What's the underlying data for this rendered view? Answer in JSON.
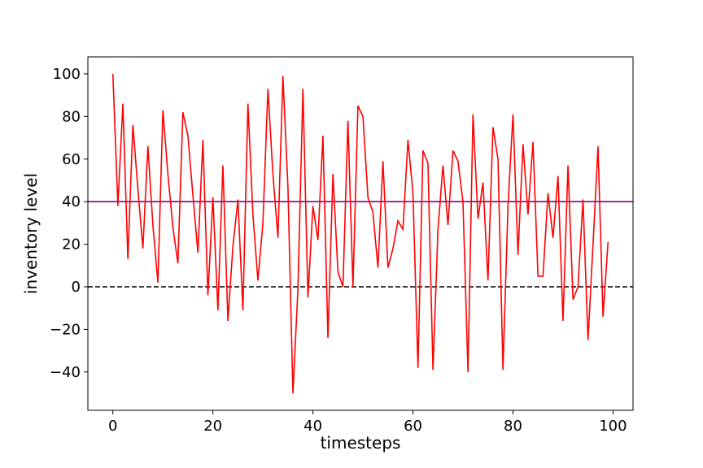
{
  "chart_data": {
    "type": "line",
    "title": "",
    "xlabel": "timesteps",
    "ylabel": "inventory level",
    "xlim": [
      -5,
      104
    ],
    "ylim": [
      -58,
      108
    ],
    "xticks": [
      0,
      20,
      40,
      60,
      80,
      100
    ],
    "yticks": [
      -40,
      -20,
      0,
      20,
      40,
      60,
      80,
      100
    ],
    "grid": false,
    "series": [
      {
        "color": "#ff0000",
        "x": [
          0,
          1,
          2,
          3,
          4,
          5,
          6,
          7,
          8,
          9,
          10,
          11,
          12,
          13,
          14,
          15,
          16,
          17,
          18,
          19,
          20,
          21,
          22,
          23,
          24,
          25,
          26,
          27,
          28,
          29,
          30,
          31,
          32,
          33,
          34,
          35,
          36,
          37,
          38,
          39,
          40,
          41,
          42,
          43,
          44,
          45,
          46,
          47,
          48,
          49,
          50,
          51,
          52,
          53,
          54,
          55,
          56,
          57,
          58,
          59,
          60,
          61,
          62,
          63,
          64,
          65,
          66,
          67,
          68,
          69,
          70,
          71,
          72,
          73,
          74,
          75,
          76,
          77,
          78,
          79,
          80,
          81,
          82,
          83,
          84,
          85,
          86,
          87,
          88,
          89,
          90,
          91,
          92,
          93,
          94,
          95,
          96,
          97,
          98,
          99
        ],
        "values": [
          100,
          38,
          86,
          13,
          76,
          46,
          18,
          66,
          29,
          2,
          83,
          53,
          28,
          11,
          82,
          71,
          43,
          16,
          69,
          -4,
          42,
          -11,
          57,
          -16,
          19,
          41,
          -11,
          86,
          34,
          3,
          30,
          93,
          53,
          23,
          99,
          47,
          -50,
          -1,
          93,
          -5,
          38,
          22,
          71,
          -24,
          53,
          7,
          0,
          78,
          0,
          85,
          80,
          42,
          35,
          9,
          59,
          9,
          18,
          31,
          27,
          69,
          44,
          -38,
          64,
          58,
          -39,
          27,
          57,
          29,
          64,
          59,
          40,
          -40,
          81,
          32,
          49,
          3,
          75,
          60,
          -39,
          38,
          81,
          15,
          67,
          34,
          68,
          5,
          5,
          44,
          23,
          52,
          -16,
          57,
          -6,
          0,
          41,
          -25,
          20,
          66,
          -14,
          21
        ]
      }
    ],
    "reference_lines": [
      {
        "value": 40,
        "color": "#800080",
        "style": "solid"
      },
      {
        "value": 0,
        "color": "#000000",
        "style": "dashed"
      }
    ]
  }
}
